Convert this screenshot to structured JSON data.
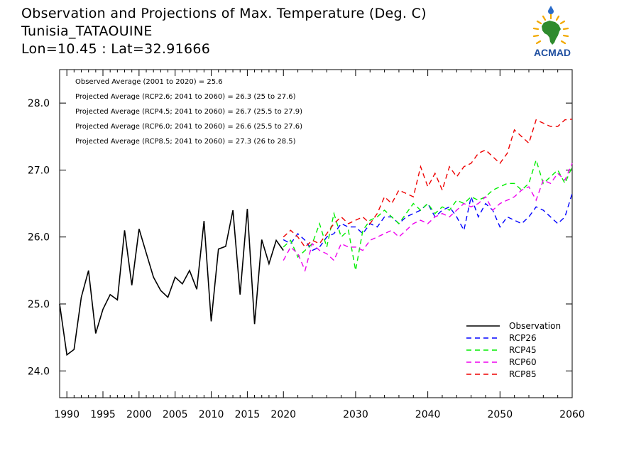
{
  "header": {
    "title": "Observation and Projections of Max. Temperature (Deg. C)",
    "location": "Tunisia_TATAOUINE",
    "coords": "Lon=10.45 : Lat=32.91666"
  },
  "logo": {
    "text": "ACMAD",
    "colors": {
      "africa": "#2e8b2e",
      "rays": "#f2a900",
      "text": "#1f4fa0",
      "drop": "#2a6bc9"
    }
  },
  "chart_data": {
    "type": "line",
    "xlim": [
      1989,
      2060
    ],
    "ylim": [
      23.6,
      28.5
    ],
    "x_ticks": [
      1990,
      1995,
      2000,
      2005,
      2010,
      2015,
      2020,
      2030,
      2040,
      2050,
      2060
    ],
    "y_ticks": [
      24.0,
      25.0,
      26.0,
      27.0,
      28.0
    ],
    "y_tick_labels": [
      "24.0",
      "25.0",
      "26.0",
      "27.0",
      "28.0"
    ],
    "annotations": [
      "Observed Average (2001 to 2020) = 25.6",
      "Projected Average (RCP2.6; 2041 to 2060) = 26.3 (25 to 27.6)",
      "Projected Average (RCP4.5; 2041 to 2060) = 26.7 (25.5 to 27.9)",
      "Projected Average (RCP6.0; 2041 to 2060) = 26.6 (25.5 to 27.6)",
      "Projected Average (RCP8.5; 2041 to 2060) = 27.3 (26 to 28.5)"
    ],
    "legend_position": "bottom-right",
    "series": [
      {
        "name": "Observation",
        "color": "#000000",
        "dashed": false,
        "x": [
          1989,
          1990,
          1991,
          1992,
          1993,
          1994,
          1995,
          1996,
          1997,
          1998,
          1999,
          2000,
          2001,
          2002,
          2003,
          2004,
          2005,
          2006,
          2007,
          2008,
          2009,
          2010,
          2011,
          2012,
          2013,
          2014,
          2015,
          2016,
          2017,
          2018,
          2019,
          2020
        ],
        "y": [
          25.0,
          24.24,
          24.32,
          25.1,
          25.5,
          24.56,
          24.92,
          25.14,
          25.06,
          26.1,
          25.28,
          26.12,
          25.76,
          25.4,
          25.2,
          25.1,
          25.4,
          25.3,
          25.5,
          25.22,
          26.24,
          24.74,
          25.82,
          25.86,
          26.4,
          25.14,
          26.42,
          24.7,
          25.96,
          25.6,
          25.95,
          25.8
        ]
      },
      {
        "name": "RCP26",
        "color": "#0000ff",
        "dashed": true,
        "x": [
          2020,
          2021,
          2022,
          2023,
          2024,
          2025,
          2026,
          2027,
          2028,
          2029,
          2030,
          2031,
          2032,
          2033,
          2034,
          2035,
          2036,
          2037,
          2038,
          2039,
          2040,
          2041,
          2042,
          2043,
          2044,
          2045,
          2046,
          2047,
          2048,
          2049,
          2050,
          2051,
          2052,
          2053,
          2054,
          2055,
          2056,
          2057,
          2058,
          2059,
          2060
        ],
        "y": [
          25.96,
          25.9,
          26.05,
          25.95,
          25.8,
          25.85,
          26.0,
          26.05,
          26.2,
          26.15,
          26.15,
          26.05,
          26.2,
          26.15,
          26.3,
          26.3,
          26.2,
          26.3,
          26.35,
          26.4,
          26.5,
          26.3,
          26.4,
          26.45,
          26.3,
          26.1,
          26.6,
          26.3,
          26.5,
          26.4,
          26.15,
          26.3,
          26.25,
          26.2,
          26.3,
          26.45,
          26.4,
          26.3,
          26.2,
          26.3,
          26.65
        ]
      },
      {
        "name": "RCP45",
        "color": "#00ee00",
        "dashed": true,
        "x": [
          2020,
          2021,
          2022,
          2023,
          2024,
          2025,
          2026,
          2027,
          2028,
          2029,
          2030,
          2031,
          2032,
          2033,
          2034,
          2035,
          2036,
          2037,
          2038,
          2039,
          2040,
          2041,
          2042,
          2043,
          2044,
          2045,
          2046,
          2047,
          2048,
          2049,
          2050,
          2051,
          2052,
          2053,
          2054,
          2055,
          2056,
          2057,
          2058,
          2059,
          2060
        ],
        "y": [
          25.85,
          25.95,
          25.7,
          25.8,
          25.9,
          26.2,
          25.85,
          26.35,
          26.0,
          26.1,
          25.5,
          26.1,
          26.25,
          26.3,
          26.4,
          26.3,
          26.2,
          26.35,
          26.5,
          26.4,
          26.5,
          26.35,
          26.45,
          26.4,
          26.55,
          26.5,
          26.6,
          26.55,
          26.6,
          26.7,
          26.75,
          26.8,
          26.8,
          26.7,
          26.8,
          27.15,
          26.8,
          26.9,
          27.0,
          26.8,
          27.05
        ]
      },
      {
        "name": "RCP60",
        "color": "#ee00ee",
        "dashed": true,
        "x": [
          2020,
          2021,
          2022,
          2023,
          2024,
          2025,
          2026,
          2027,
          2028,
          2029,
          2030,
          2031,
          2032,
          2033,
          2034,
          2035,
          2036,
          2037,
          2038,
          2039,
          2040,
          2041,
          2042,
          2043,
          2044,
          2045,
          2046,
          2047,
          2048,
          2049,
          2050,
          2051,
          2052,
          2053,
          2054,
          2055,
          2056,
          2057,
          2058,
          2059,
          2060
        ],
        "y": [
          25.65,
          25.85,
          25.75,
          25.5,
          25.9,
          25.8,
          25.75,
          25.65,
          25.9,
          25.85,
          25.85,
          25.8,
          25.95,
          26.0,
          26.05,
          26.1,
          26.0,
          26.1,
          26.2,
          26.25,
          26.2,
          26.3,
          26.35,
          26.3,
          26.4,
          26.5,
          26.45,
          26.5,
          26.6,
          26.4,
          26.5,
          26.55,
          26.6,
          26.7,
          26.75,
          26.55,
          26.85,
          26.8,
          26.95,
          26.85,
          27.1
        ]
      },
      {
        "name": "RCP85",
        "color": "#ee0000",
        "dashed": true,
        "x": [
          2020,
          2021,
          2022,
          2023,
          2024,
          2025,
          2026,
          2027,
          2028,
          2029,
          2030,
          2031,
          2032,
          2033,
          2034,
          2035,
          2036,
          2037,
          2038,
          2039,
          2040,
          2041,
          2042,
          2043,
          2044,
          2045,
          2046,
          2047,
          2048,
          2049,
          2050,
          2051,
          2052,
          2053,
          2054,
          2055,
          2056,
          2057,
          2058,
          2059,
          2060
        ],
        "y": [
          26.0,
          26.1,
          26.0,
          25.85,
          25.95,
          25.9,
          26.05,
          26.2,
          26.3,
          26.2,
          26.25,
          26.3,
          26.2,
          26.35,
          26.6,
          26.5,
          26.7,
          26.65,
          26.6,
          27.05,
          26.75,
          26.95,
          26.7,
          27.05,
          26.9,
          27.05,
          27.1,
          27.25,
          27.3,
          27.2,
          27.1,
          27.25,
          27.6,
          27.5,
          27.4,
          27.75,
          27.7,
          27.65,
          27.65,
          27.75,
          27.76
        ]
      }
    ]
  }
}
